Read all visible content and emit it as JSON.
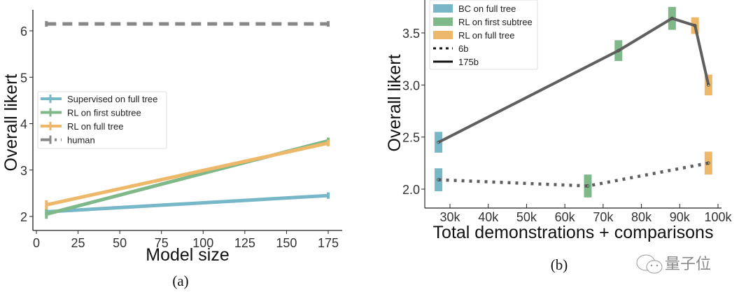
{
  "chart_data": [
    {
      "type": "line",
      "panel_caption": "(a)",
      "title": "",
      "xlabel": "Model size",
      "ylabel": "Overall likert",
      "xlim": [
        -3,
        185
      ],
      "ylim": [
        1.7,
        6.45
      ],
      "xticks": [
        0,
        25,
        50,
        75,
        100,
        125,
        150,
        175
      ],
      "xtick_labels": [
        "0",
        "25",
        "50",
        "75",
        "100",
        "125",
        "150",
        "175"
      ],
      "yticks": [
        2,
        3,
        4,
        5,
        6
      ],
      "ytick_labels": [
        "2",
        "3",
        "4",
        "5",
        "6"
      ],
      "grid": false,
      "legend_position": "center-left",
      "x": [
        6,
        175
      ],
      "series": [
        {
          "name": "Supervised on full tree",
          "color": "#78b7c8",
          "style": "solid",
          "values": [
            2.1,
            2.45
          ],
          "err": [
            0.07,
            0.07
          ]
        },
        {
          "name": "RL on first subtree",
          "color": "#7fb889",
          "style": "solid",
          "values": [
            2.05,
            3.63
          ],
          "err": [
            0.1,
            0.07
          ]
        },
        {
          "name": "RL on full tree",
          "color": "#eeb86a",
          "style": "solid",
          "values": [
            2.25,
            3.58
          ],
          "err": [
            0.1,
            0.07
          ]
        },
        {
          "name": "human",
          "color": "#888888",
          "style": "dashed",
          "values": [
            6.15,
            6.15
          ],
          "err": [
            0.06,
            0.06
          ]
        }
      ]
    },
    {
      "type": "line",
      "panel_caption": "(b)",
      "title": "",
      "xlabel": "Total demonstrations + comparisons",
      "ylabel": "Overall likert",
      "xlim": [
        23000,
        101500
      ],
      "ylim": [
        1.82,
        3.8
      ],
      "xticks": [
        30000,
        40000,
        50000,
        60000,
        70000,
        80000,
        90000,
        100000
      ],
      "xtick_labels": [
        "30k",
        "40k",
        "50k",
        "60k",
        "70k",
        "80k",
        "90k",
        "100k"
      ],
      "yticks": [
        2.0,
        2.5,
        3.0,
        3.5
      ],
      "ytick_labels": [
        "2.0",
        "2.5",
        "3.0",
        "3.5"
      ],
      "grid": false,
      "legend_position": "top-left",
      "legend": [
        {
          "name": "BC on full tree",
          "kind": "patch",
          "color": "#78b7c8"
        },
        {
          "name": "RL on first subtree",
          "kind": "patch",
          "color": "#7fb889"
        },
        {
          "name": "RL on full tree",
          "kind": "patch",
          "color": "#eeb86a"
        },
        {
          "name": "6b",
          "kind": "line",
          "style": "dotted",
          "color": "#111111"
        },
        {
          "name": "175b",
          "kind": "line",
          "style": "solid",
          "color": "#111111"
        }
      ],
      "series": [
        {
          "name": "175b",
          "style": "solid",
          "color": "#5f5f5f",
          "points": [
            {
              "x": 27000,
              "y": 2.45,
              "method": "BC on full tree",
              "err": 0.1
            },
            {
              "x": 74000,
              "y": 3.33,
              "method": "RL on first subtree",
              "err": 0.1
            },
            {
              "x": 88000,
              "y": 3.64,
              "method": "RL on first subtree",
              "err": 0.11
            },
            {
              "x": 94000,
              "y": 3.57,
              "method": "RL on full tree",
              "err": 0.08
            },
            {
              "x": 97500,
              "y": 3.0,
              "method": "RL on full tree",
              "err": 0.1
            }
          ]
        },
        {
          "name": "6b",
          "style": "dotted",
          "color": "#5f5f5f",
          "points": [
            {
              "x": 27000,
              "y": 2.09,
              "method": "BC on full tree",
              "err": 0.11
            },
            {
              "x": 66000,
              "y": 2.03,
              "method": "RL on first subtree",
              "err": 0.11
            },
            {
              "x": 97500,
              "y": 2.25,
              "method": "RL on full tree",
              "err": 0.11
            }
          ]
        }
      ]
    }
  ],
  "watermark": {
    "icon": "wechat-icon",
    "text": "量子位"
  }
}
